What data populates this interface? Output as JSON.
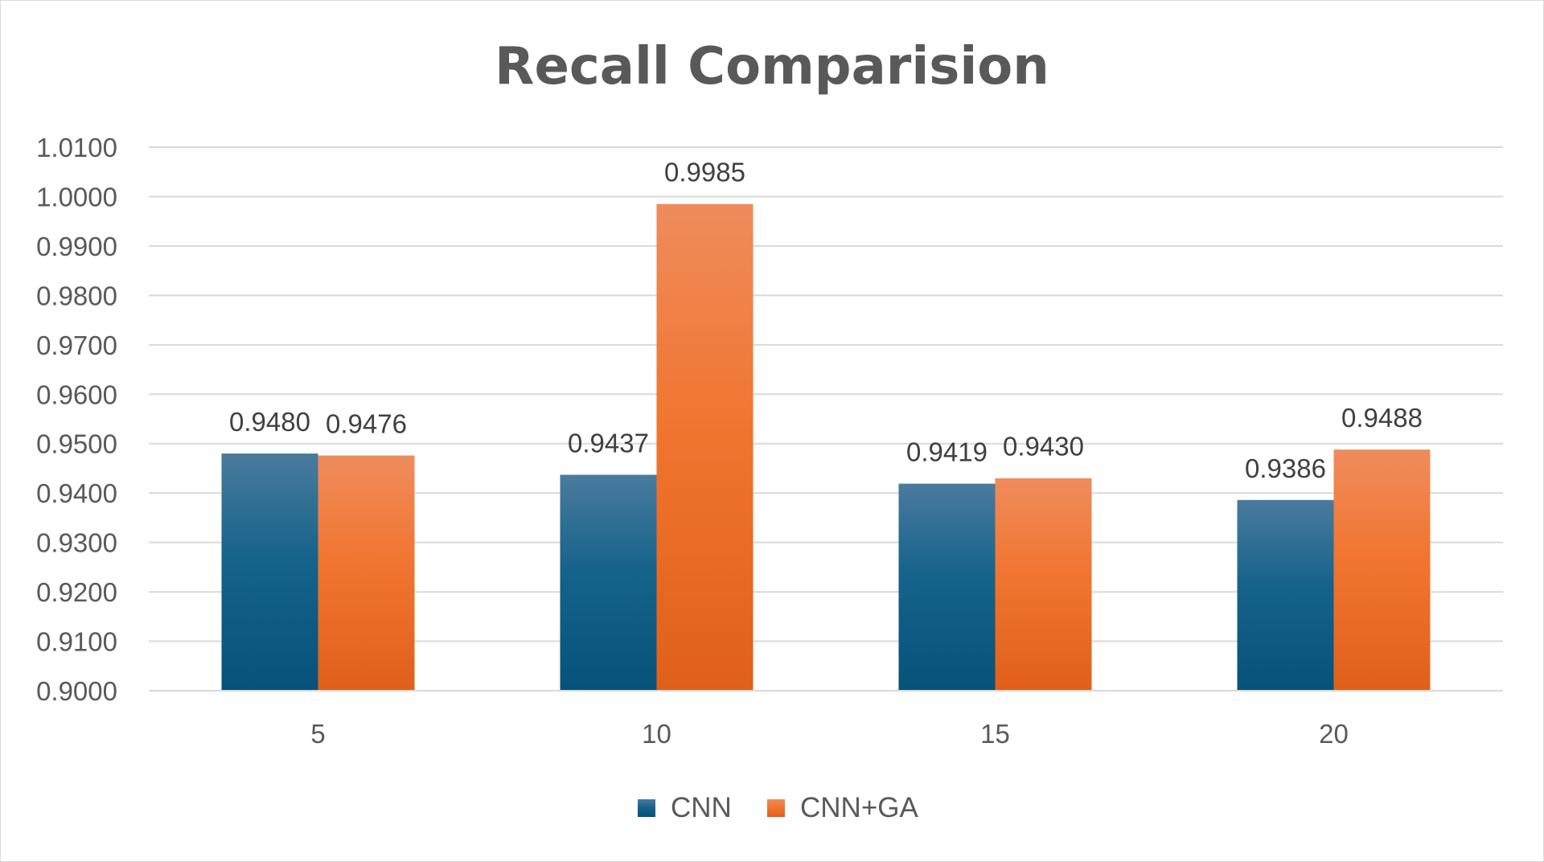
{
  "chart_data": {
    "type": "bar",
    "title": "Recall Comparision",
    "categories": [
      "5",
      "10",
      "15",
      "20"
    ],
    "series": [
      {
        "name": "CNN",
        "values": [
          0.948,
          0.9437,
          0.9419,
          0.9386
        ],
        "color": "#0f5e84"
      },
      {
        "name": "CNN+GA",
        "values": [
          0.9476,
          0.9985,
          0.943,
          0.9488
        ],
        "color": "#f07a30"
      }
    ],
    "value_labels": [
      [
        "0.9480",
        "0.9437",
        "0.9419",
        "0.9386"
      ],
      [
        "0.9476",
        "0.9985",
        "0.9430",
        "0.9488"
      ]
    ],
    "ylim": [
      0.9,
      1.01
    ],
    "yticks": [
      "0.9000",
      "0.9100",
      "0.9200",
      "0.9300",
      "0.9400",
      "0.9500",
      "0.9600",
      "0.9700",
      "0.9800",
      "0.9900",
      "1.0000",
      "1.0100"
    ],
    "grid": true,
    "legend_position": "bottom"
  }
}
